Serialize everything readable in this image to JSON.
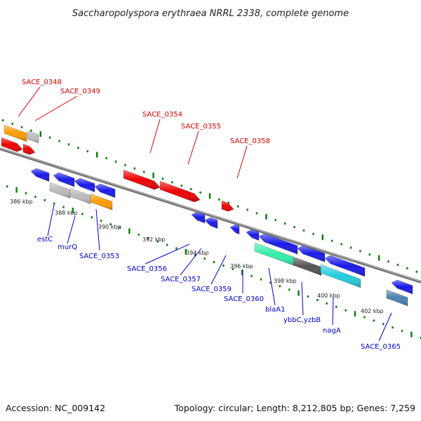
{
  "title": "Saccharopolyspora erythraea NRRL 2338, complete genome",
  "footer": {
    "accession": "Accession: NC_009142",
    "topology": "Topology: circular; Length: 8,212,805 bp; Genes: 7,259"
  },
  "scale_labels": [
    "386 kbp",
    "388 kbp",
    "390 kbp",
    "392 kbp",
    "394 kbp",
    "396 kbp",
    "398 kbp",
    "400 kbp",
    "402 kbp"
  ],
  "top_strand_labels": [
    "SACE_0348",
    "SACE_0349",
    "SACE_0354",
    "SACE_0355",
    "SACE_0358"
  ],
  "bottom_strand_labels": [
    "estC",
    "murQ",
    "SACE_0353",
    "SACE_0356",
    "SACE_0357",
    "SACE_0359",
    "SACE_0360",
    "blaA1",
    "ybbC,yzbB",
    "nagA",
    "SACE_0365"
  ],
  "colors": {
    "forward_gene": "#ee0000",
    "reverse_gene": "#1a1ae6",
    "orange_gene": "#ff9a00",
    "grey_gene": "#bbbbbb",
    "dark_gene": "#555555",
    "aqua_gene": "#33eeaa",
    "cyan_gene": "#22ccdd",
    "steel_gene": "#4a80b0",
    "scale_ticks": "#0a7a0a",
    "top_label": "#dd0000",
    "bottom_label": "#0000cc"
  }
}
